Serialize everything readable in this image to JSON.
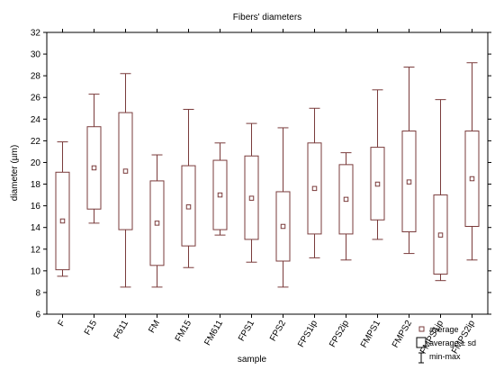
{
  "chart_data": {
    "type": "boxplot",
    "title": "Fibers' diameters",
    "xlabel": "sample",
    "ylabel": "diameter (µm)",
    "ylim": [
      6,
      32
    ],
    "yticks": [
      6,
      8,
      10,
      12,
      14,
      16,
      18,
      20,
      22,
      24,
      26,
      28,
      30,
      32
    ],
    "grid": false,
    "legend_position": "bottom-right",
    "legend": {
      "average": "average",
      "box": "average ± sd",
      "range": "min-max"
    },
    "colors": {
      "box": "#7a3b3b",
      "marker": "#7a3b3b",
      "axis": "#000000"
    },
    "categories": [
      "F",
      "F15",
      "F611",
      "FM",
      "FM15",
      "FM611",
      "FPS1",
      "FPS2",
      "FPS1ip",
      "FPS2ip",
      "FMPS1",
      "FMPS2",
      "FMPS1ip",
      "FMPS2ip"
    ],
    "series": [
      {
        "average": [
          14.6,
          19.5,
          19.2,
          14.4,
          15.9,
          17.0,
          16.7,
          14.1,
          17.6,
          16.6,
          18.0,
          18.2,
          13.3,
          18.5
        ],
        "lower": [
          10.1,
          15.7,
          13.8,
          10.5,
          12.3,
          13.8,
          12.9,
          10.9,
          13.4,
          13.4,
          14.7,
          13.6,
          9.7,
          14.1
        ],
        "upper": [
          19.1,
          23.3,
          24.6,
          18.3,
          19.7,
          20.2,
          20.6,
          17.3,
          21.8,
          19.8,
          21.4,
          22.9,
          17.0,
          22.9
        ],
        "min": [
          9.5,
          14.4,
          8.5,
          8.5,
          10.3,
          13.3,
          10.8,
          8.5,
          11.2,
          11.0,
          12.9,
          11.6,
          9.1,
          11.0
        ],
        "max": [
          21.9,
          26.3,
          28.2,
          20.7,
          24.9,
          21.8,
          23.6,
          23.2,
          25.0,
          20.9,
          26.7,
          28.8,
          25.8,
          29.2
        ]
      }
    ]
  }
}
